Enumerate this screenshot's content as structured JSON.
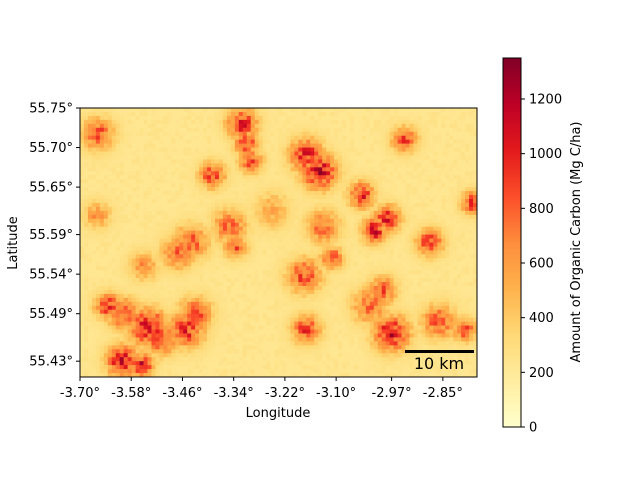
{
  "chart_data": {
    "type": "heatmap",
    "title": "",
    "xlabel": "Longitude",
    "ylabel": "Latitude",
    "x_ticks": [
      "-3.70°",
      "-3.58°",
      "-3.46°",
      "-3.34°",
      "-3.22°",
      "-3.10°",
      "-2.97°",
      "-2.85°"
    ],
    "y_ticks": [
      "55.75°",
      "55.70°",
      "55.65°",
      "55.59°",
      "55.54°",
      "55.49°",
      "55.43°"
    ],
    "xlim": [
      -3.7,
      -2.77
    ],
    "ylim": [
      55.41,
      55.75
    ],
    "colorbar": {
      "label": "Amount of Organic Carbon (Mg C/ha)",
      "range": [
        0,
        1350
      ],
      "ticks": [
        "0",
        "200",
        "400",
        "600",
        "800",
        "1000",
        "1200"
      ],
      "colormap": "YlOrRd",
      "colors": [
        "#ffffcc",
        "#ffeda0",
        "#fed976",
        "#feb24c",
        "#fd8d3c",
        "#fc4e2a",
        "#e31a1c",
        "#bd0026",
        "#800026"
      ]
    },
    "scale_bar": {
      "label": "10 km"
    },
    "background_level": 230,
    "hotspots": [
      {
        "lon": -3.657,
        "lat": 55.717,
        "value": 950
      },
      {
        "lon": -3.635,
        "lat": 55.5,
        "value": 1050
      },
      {
        "lon": -3.6,
        "lat": 55.49,
        "value": 980
      },
      {
        "lon": -3.54,
        "lat": 55.473,
        "value": 1180
      },
      {
        "lon": -3.51,
        "lat": 55.458,
        "value": 1000
      },
      {
        "lon": -3.6,
        "lat": 55.43,
        "value": 1200
      },
      {
        "lon": -3.555,
        "lat": 55.425,
        "value": 1150
      },
      {
        "lon": -3.45,
        "lat": 55.47,
        "value": 1050
      },
      {
        "lon": -3.43,
        "lat": 55.49,
        "value": 950
      },
      {
        "lon": -3.44,
        "lat": 55.58,
        "value": 900
      },
      {
        "lon": -3.47,
        "lat": 55.567,
        "value": 850
      },
      {
        "lon": -3.39,
        "lat": 55.665,
        "value": 1000
      },
      {
        "lon": -3.35,
        "lat": 55.6,
        "value": 850
      },
      {
        "lon": -3.335,
        "lat": 55.575,
        "value": 900
      },
      {
        "lon": -3.32,
        "lat": 55.73,
        "value": 1100
      },
      {
        "lon": -3.31,
        "lat": 55.705,
        "value": 1000
      },
      {
        "lon": -3.3,
        "lat": 55.683,
        "value": 950
      },
      {
        "lon": -3.17,
        "lat": 55.69,
        "value": 1100
      },
      {
        "lon": -3.14,
        "lat": 55.67,
        "value": 1200
      },
      {
        "lon": -3.175,
        "lat": 55.538,
        "value": 950
      },
      {
        "lon": -3.11,
        "lat": 55.56,
        "value": 1000
      },
      {
        "lon": -3.17,
        "lat": 55.47,
        "value": 1000
      },
      {
        "lon": -3.13,
        "lat": 55.6,
        "value": 850
      },
      {
        "lon": -3.04,
        "lat": 55.64,
        "value": 1050
      },
      {
        "lon": -3.01,
        "lat": 55.595,
        "value": 1150
      },
      {
        "lon": -2.98,
        "lat": 55.61,
        "value": 1100
      },
      {
        "lon": -3.02,
        "lat": 55.5,
        "value": 850
      },
      {
        "lon": -2.97,
        "lat": 55.465,
        "value": 1200
      },
      {
        "lon": -2.99,
        "lat": 55.52,
        "value": 900
      },
      {
        "lon": -2.88,
        "lat": 55.58,
        "value": 1000
      },
      {
        "lon": -2.86,
        "lat": 55.48,
        "value": 900
      },
      {
        "lon": -2.8,
        "lat": 55.47,
        "value": 950
      },
      {
        "lon": -2.78,
        "lat": 55.63,
        "value": 1050
      },
      {
        "lon": -2.94,
        "lat": 55.71,
        "value": 950
      },
      {
        "lon": -3.66,
        "lat": 55.615,
        "value": 700
      },
      {
        "lon": -3.55,
        "lat": 55.55,
        "value": 700
      },
      {
        "lon": -3.25,
        "lat": 55.62,
        "value": 600
      }
    ]
  }
}
